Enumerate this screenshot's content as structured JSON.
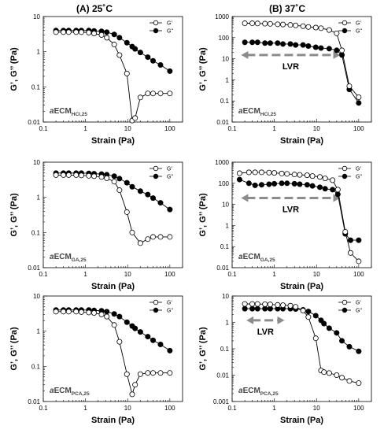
{
  "column_titles": [
    "(A) 25˚C",
    "(B) 37˚C"
  ],
  "chart_data": [
    {
      "type": "scatter",
      "panel": "A1",
      "log_x": true,
      "log_y": true,
      "xlim": [
        0.1,
        200
      ],
      "ylim": [
        0.01,
        10
      ],
      "xticks": [
        "0.1",
        "1",
        "10",
        "100"
      ],
      "yticks": [
        "0.01",
        "0.1",
        "1",
        "10"
      ],
      "xlabel": "Strain (Pa)",
      "ylabel": "G’, G’’ (Pa)",
      "sample": {
        "main": "aECM",
        "sub": "HCl,25"
      },
      "legend": [
        "G'",
        "G\""
      ],
      "lvr": null,
      "x": [
        0.2,
        0.3,
        0.4,
        0.6,
        0.8,
        1.2,
        1.6,
        2.4,
        3.2,
        4.8,
        6.4,
        9.6,
        12.8,
        15,
        20,
        30,
        40,
        60,
        100
      ],
      "series": [
        {
          "name": "G'",
          "values": [
            3.6,
            3.6,
            3.6,
            3.6,
            3.6,
            3.5,
            3.3,
            3.0,
            2.5,
            1.6,
            0.8,
            0.24,
            0.011,
            0.013,
            0.05,
            0.065,
            0.065,
            0.065,
            0.065
          ]
        },
        {
          "name": "G\"",
          "values": [
            4.0,
            4.0,
            4.0,
            4.0,
            4.0,
            4.0,
            3.9,
            3.8,
            3.6,
            3.1,
            2.5,
            1.8,
            1.4,
            1.2,
            0.95,
            0.7,
            0.55,
            0.42,
            0.28
          ]
        }
      ]
    },
    {
      "type": "scatter",
      "panel": "B1",
      "log_x": true,
      "log_y": true,
      "xlim": [
        0.1,
        200
      ],
      "ylim": [
        0.01,
        1000
      ],
      "xticks": [
        "0.1",
        "1",
        "10",
        "100"
      ],
      "yticks": [
        "0.01",
        "0.1",
        "1",
        "10",
        "100",
        "1000"
      ],
      "xlabel": "Strain (Pa)",
      "ylabel": "G’, G’’ (Pa)",
      "sample": {
        "main": "aECM",
        "sub": "HCl,25"
      },
      "legend": [
        "G'",
        "G\""
      ],
      "lvr": {
        "label": "LVR",
        "from": 0.15,
        "to": 40,
        "y": 15
      },
      "x": [
        0.2,
        0.3,
        0.4,
        0.6,
        0.8,
        1.2,
        1.6,
        2.4,
        3.2,
        4.8,
        6.4,
        9.6,
        12.8,
        20,
        30,
        40,
        60,
        100
      ],
      "series": [
        {
          "name": "G'",
          "values": [
            480,
            480,
            470,
            460,
            450,
            430,
            420,
            400,
            380,
            350,
            320,
            300,
            280,
            230,
            160,
            25,
            0.5,
            0.15
          ]
        },
        {
          "name": "G\"",
          "values": [
            60,
            60,
            60,
            55,
            55,
            55,
            50,
            50,
            45,
            45,
            40,
            35,
            32,
            30,
            25,
            15,
            0.35,
            0.08
          ]
        }
      ]
    },
    {
      "type": "scatter",
      "panel": "A2",
      "log_x": true,
      "log_y": true,
      "xlim": [
        0.1,
        200
      ],
      "ylim": [
        0.01,
        10
      ],
      "xticks": [
        "0.1",
        "1",
        "10",
        "100"
      ],
      "yticks": [
        "0.01",
        "0.1",
        "1",
        "10"
      ],
      "xlabel": "Strain (Pa)",
      "ylabel": "G’, G’’ (Pa)",
      "sample": {
        "main": "aECM",
        "sub": "GA,25"
      },
      "legend": [
        "G'",
        "G\""
      ],
      "lvr": null,
      "x": [
        0.2,
        0.3,
        0.4,
        0.6,
        0.8,
        1.2,
        1.6,
        2.4,
        3.2,
        4.8,
        6.4,
        9.6,
        12.8,
        20,
        30,
        40,
        60,
        100
      ],
      "series": [
        {
          "name": "G'",
          "values": [
            4.3,
            4.3,
            4.3,
            4.3,
            4.2,
            4.1,
            4.0,
            3.8,
            3.5,
            2.8,
            1.6,
            0.38,
            0.1,
            0.05,
            0.065,
            0.075,
            0.075,
            0.075
          ]
        },
        {
          "name": "G\"",
          "values": [
            4.9,
            4.9,
            4.9,
            4.9,
            4.9,
            4.8,
            4.7,
            4.6,
            4.4,
            4.0,
            3.4,
            2.6,
            2.0,
            1.5,
            1.2,
            0.95,
            0.7,
            0.45
          ]
        }
      ]
    },
    {
      "type": "scatter",
      "panel": "B2",
      "log_x": true,
      "log_y": true,
      "xlim": [
        0.1,
        200
      ],
      "ylim": [
        0.01,
        1000
      ],
      "xticks": [
        "0.1",
        "1",
        "10",
        "100"
      ],
      "yticks": [
        "0.01",
        "0.1",
        "1",
        "10",
        "100",
        "1000"
      ],
      "xlabel": "Strain (Pa)",
      "ylabel": "G’, G’’ (Pa)",
      "sample": {
        "main": "aECM",
        "sub": "GA,25"
      },
      "legend": [
        "G'",
        "G\""
      ],
      "lvr": {
        "label": "LVR",
        "from": 0.15,
        "to": 40,
        "y": 20
      },
      "x": [
        0.15,
        0.25,
        0.35,
        0.5,
        0.75,
        1.0,
        1.5,
        2.0,
        3.0,
        4.0,
        6.0,
        8.0,
        12.0,
        16.0,
        24.0,
        32.0,
        48.0,
        64.0,
        100
      ],
      "series": [
        {
          "name": "G'",
          "values": [
            300,
            330,
            330,
            330,
            320,
            310,
            290,
            280,
            260,
            250,
            240,
            220,
            200,
            170,
            140,
            50,
            0.5,
            0.05,
            0.02
          ]
        },
        {
          "name": "G\"",
          "values": [
            150,
            100,
            80,
            85,
            90,
            95,
            100,
            100,
            95,
            90,
            85,
            75,
            65,
            55,
            50,
            30,
            0.4,
            0.2,
            0.2
          ]
        }
      ]
    },
    {
      "type": "scatter",
      "panel": "A3",
      "log_x": true,
      "log_y": true,
      "xlim": [
        0.1,
        200
      ],
      "ylim": [
        0.01,
        10
      ],
      "xticks": [
        "0.1",
        "1",
        "10",
        "100"
      ],
      "yticks": [
        "0.01",
        "0.1",
        "1",
        "10"
      ],
      "xlabel": "Strain (Pa)",
      "ylabel": "G’, G’’ (Pa)",
      "sample": {
        "main": "aECM",
        "sub": "PCA,25"
      },
      "legend": [
        "G'",
        "G\""
      ],
      "lvr": null,
      "x": [
        0.2,
        0.3,
        0.4,
        0.6,
        0.8,
        1.2,
        1.6,
        2.4,
        3.2,
        4.8,
        6.4,
        9.6,
        12.8,
        15,
        20,
        30,
        40,
        60,
        100
      ],
      "series": [
        {
          "name": "G'",
          "values": [
            3.6,
            3.6,
            3.6,
            3.6,
            3.5,
            3.4,
            3.3,
            3.0,
            2.6,
            1.5,
            0.5,
            0.06,
            0.016,
            0.03,
            0.06,
            0.065,
            0.065,
            0.065,
            0.065
          ]
        },
        {
          "name": "G\"",
          "values": [
            4.0,
            4.0,
            4.0,
            4.0,
            4.0,
            4.0,
            3.9,
            3.8,
            3.6,
            3.1,
            2.6,
            1.8,
            1.4,
            1.2,
            0.95,
            0.7,
            0.55,
            0.42,
            0.28
          ]
        }
      ]
    },
    {
      "type": "scatter",
      "panel": "B3",
      "log_x": true,
      "log_y": true,
      "xlim": [
        0.1,
        200
      ],
      "ylim": [
        0.001,
        10
      ],
      "xticks": [
        "0.1",
        "1",
        "10",
        "100"
      ],
      "yticks": [
        "0.001",
        "0.01",
        "0.1",
        "1",
        "10"
      ],
      "xlabel": "Strain (Pa)",
      "ylabel": "G’, G’’ (Pa)",
      "sample": {
        "main": "aECM",
        "sub": "PCA,25"
      },
      "legend": [
        "G'",
        "G\""
      ],
      "lvr": {
        "label": "LVR",
        "from": 0.2,
        "to": 1.9,
        "y": 1.2
      },
      "x": [
        0.2,
        0.3,
        0.4,
        0.6,
        0.8,
        1.2,
        1.6,
        2.4,
        3.2,
        4.8,
        6.4,
        9.6,
        12.8,
        15,
        20,
        30,
        40,
        60,
        100
      ],
      "series": [
        {
          "name": "G'",
          "values": [
            5.0,
            5.0,
            5.0,
            4.9,
            4.8,
            4.6,
            4.5,
            4.3,
            3.9,
            2.8,
            1.6,
            0.25,
            0.015,
            0.013,
            0.012,
            0.01,
            0.008,
            0.006,
            0.005
          ]
        },
        {
          "name": "G\"",
          "values": [
            3.3,
            3.3,
            3.3,
            3.3,
            3.3,
            3.3,
            3.3,
            3.3,
            3.2,
            3.0,
            2.6,
            1.8,
            1.2,
            0.9,
            0.6,
            0.4,
            0.2,
            0.12,
            0.08
          ]
        }
      ]
    }
  ]
}
